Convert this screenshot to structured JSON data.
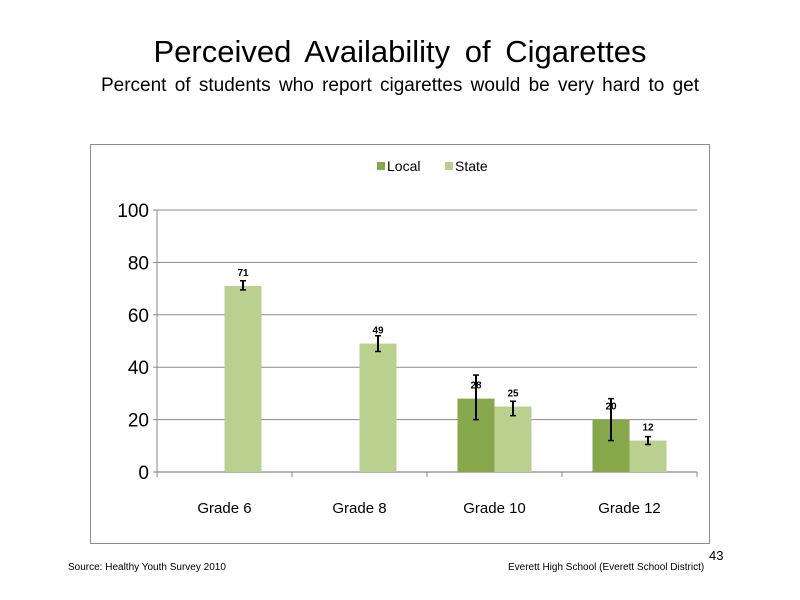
{
  "slide": {
    "title": "Perceived  Availability  of Cigarettes",
    "subtitle": "Percent  of students  who report cigarettes would be very hard to get",
    "source": "Source: Healthy Youth Survey 2010",
    "school": "Everett High School (Everett School District)",
    "page_number": "43"
  },
  "chart_data": {
    "type": "bar",
    "title": "",
    "xlabel": "",
    "ylabel": "",
    "ylim": [
      0,
      100
    ],
    "yticks": [
      0,
      20,
      40,
      60,
      80,
      100
    ],
    "grid": true,
    "legend_position": "top",
    "categories": [
      "Grade 6",
      "Grade 8",
      "Grade 10",
      "Grade 12"
    ],
    "series": [
      {
        "name": "Local",
        "color": "#86a84a",
        "values": [
          null,
          null,
          28,
          20
        ],
        "labels": [
          "",
          "",
          "28",
          "20"
        ],
        "error": [
          null,
          null,
          [
            20,
            37
          ],
          [
            12,
            28
          ]
        ]
      },
      {
        "name": "State",
        "color": "#b9d08f",
        "values": [
          71,
          49,
          25,
          12
        ],
        "labels": [
          "71",
          "49",
          "25",
          "12"
        ],
        "error": [
          [
            69.5,
            73
          ],
          [
            46,
            52
          ],
          [
            21.5,
            27
          ],
          [
            10.5,
            13.5
          ]
        ]
      }
    ]
  }
}
